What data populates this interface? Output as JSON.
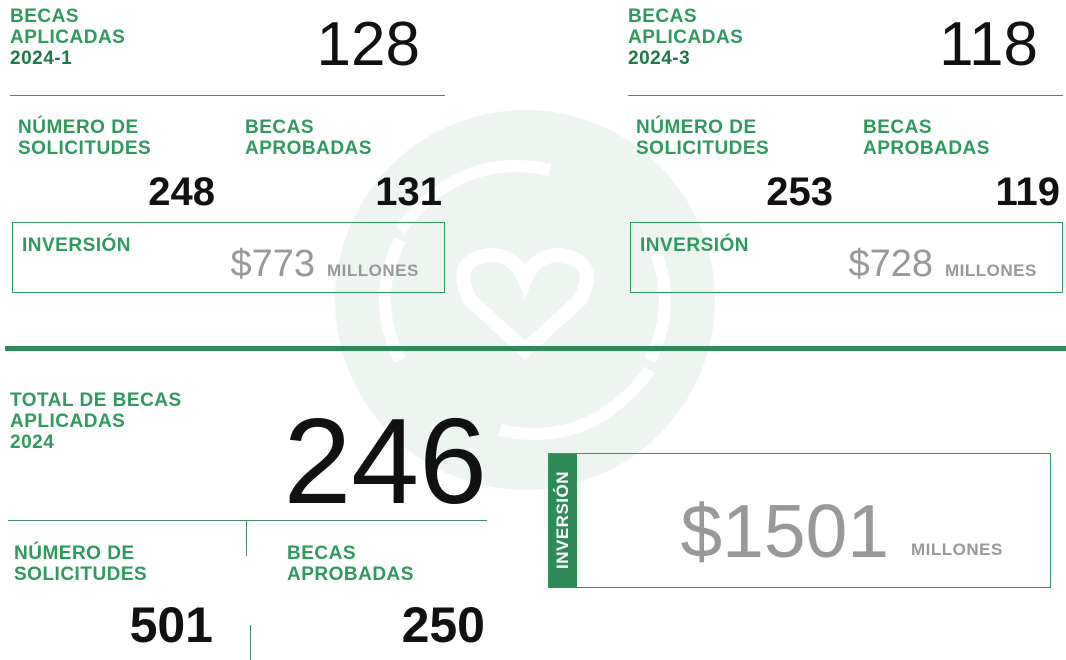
{
  "semesters": [
    {
      "label_lines": [
        "BECAS",
        "APLICADAS"
      ],
      "period": "2024-1",
      "total": "128",
      "requests_label": [
        "NÚMERO DE",
        "SOLICITUDES"
      ],
      "requests": "248",
      "approved_label": [
        "BECAS",
        "APROBADAS"
      ],
      "approved": "131",
      "investment_label": "INVERSIÓN",
      "investment": "$773",
      "unit": "MILLONES"
    },
    {
      "label_lines": [
        "BECAS",
        "APLICADAS"
      ],
      "period": "2024-3",
      "total": "118",
      "requests_label": [
        "NÚMERO DE",
        "SOLICITUDES"
      ],
      "requests": "253",
      "approved_label": [
        "BECAS",
        "APROBADAS"
      ],
      "approved": "119",
      "investment_label": "INVERSIÓN",
      "investment": "$728",
      "unit": "MILLONES"
    }
  ],
  "summary": {
    "label_lines": [
      "TOTAL DE BECAS",
      "APLICADAS",
      "2024"
    ],
    "total": "246",
    "requests_label": [
      "NÚMERO DE",
      "SOLICITUDES"
    ],
    "requests": "501",
    "approved_label": [
      "BECAS",
      "APROBADAS"
    ],
    "approved": "250",
    "investment_label": "INVERSIÓN",
    "investment": "$1501",
    "unit": "MILLONES"
  }
}
